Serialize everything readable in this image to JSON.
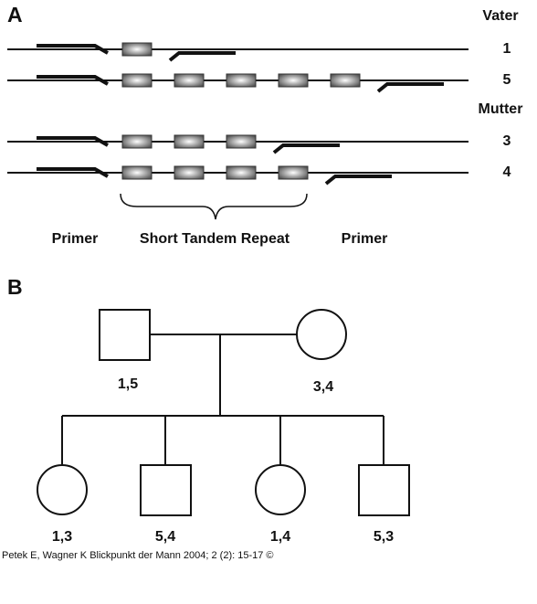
{
  "panel_a": {
    "label": "A",
    "groups": [
      {
        "title": "Vater",
        "rows": [
          "1",
          "5"
        ]
      },
      {
        "title": "Mutter",
        "rows": [
          "3",
          "4"
        ]
      }
    ],
    "labels": [
      "Primer",
      "Short Tandem Repeat",
      "Primer"
    ]
  },
  "panel_b": {
    "label": "B",
    "father": "1,5",
    "mother": "3,4",
    "children": [
      {
        "sex": "female",
        "label": "1,3"
      },
      {
        "sex": "male",
        "label": "5,4"
      },
      {
        "sex": "female",
        "label": "1,4"
      },
      {
        "sex": "male",
        "label": "5,3"
      }
    ]
  },
  "caption": "Petek E, Wagner K Blickpunkt der Mann 2004; 2 (2): 15-17 ©"
}
